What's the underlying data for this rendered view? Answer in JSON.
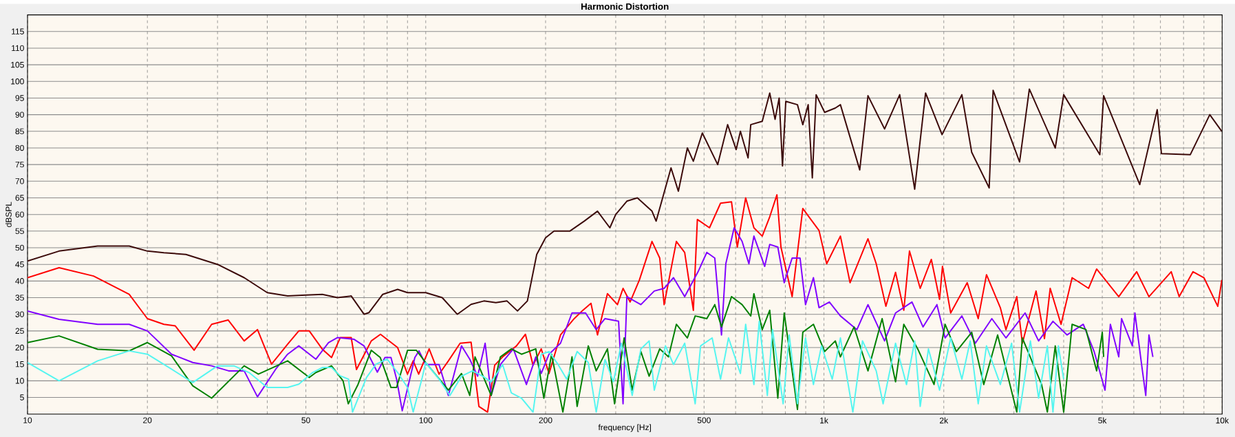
{
  "chart_data": {
    "type": "line",
    "title": "Harmonic Distortion",
    "xlabel": "frequency [Hz]",
    "ylabel": "dBSPL",
    "log": "x",
    "grid": true,
    "line_style": "solid",
    "xlim": [
      10,
      10000
    ],
    "ylim": [
      0,
      120
    ],
    "xticks": [
      10,
      20,
      {
        "value": 30,
        "label": null
      },
      {
        "value": 40,
        "label": null
      },
      50,
      {
        "value": 60,
        "label": null
      },
      {
        "value": 70,
        "label": null
      },
      {
        "value": 80,
        "label": null
      },
      {
        "value": 90,
        "label": null
      },
      100,
      200,
      {
        "value": 300,
        "label": null
      },
      {
        "value": 400,
        "label": null
      },
      500,
      {
        "value": 600,
        "label": null
      },
      {
        "value": 700,
        "label": null
      },
      {
        "value": 800,
        "label": null
      },
      {
        "value": 900,
        "label": null
      },
      {
        "value": 1000,
        "label": "1k"
      },
      {
        "value": 2000,
        "label": "2k"
      },
      {
        "value": 3000,
        "label": null
      },
      {
        "value": 4000,
        "label": null
      },
      {
        "value": 5000,
        "label": "5k"
      },
      {
        "value": 6000,
        "label": null
      },
      {
        "value": 7000,
        "label": null
      },
      {
        "value": 8000,
        "label": null
      },
      {
        "value": 9000,
        "label": null
      },
      {
        "value": 10000,
        "label": "10k"
      }
    ],
    "yticks": [
      5,
      10,
      15,
      20,
      25,
      30,
      35,
      40,
      45,
      50,
      55,
      60,
      65,
      70,
      75,
      80,
      85,
      90,
      95,
      100,
      105,
      110,
      115
    ],
    "series": [
      {
        "color": "#3c0a0a",
        "x": [
          10,
          12,
          15,
          18,
          20,
          22,
          25,
          30,
          35,
          40,
          45,
          50,
          55,
          60,
          65,
          70,
          72,
          78,
          85,
          90,
          100,
          110,
          120,
          130,
          140,
          150,
          160,
          170,
          180,
          190,
          200,
          210,
          230,
          250,
          270,
          290,
          300,
          320,
          340,
          370,
          379,
          413,
          431,
          454,
          470,
          495,
          541,
          573,
          602,
          617,
          645,
          655,
          700,
          731,
          754,
          772,
          787,
          802,
          858,
          885,
          913,
          935,
          956,
          1004,
          1068,
          1100,
          1230,
          1290,
          1420,
          1550,
          1690,
          1800,
          1980,
          2220,
          2350,
          2600,
          2660,
          3100,
          3280,
          3810,
          4000,
          4930,
          5040,
          6210,
          6870,
          7040,
          8320,
          9310,
          9980
        ],
        "values": [
          46,
          49,
          50.5,
          50.5,
          49,
          48.5,
          48,
          45,
          41,
          36.5,
          35.5,
          35.8,
          36,
          35,
          35.5,
          30,
          30.5,
          36,
          37.5,
          36.5,
          36.5,
          35,
          30,
          33,
          34,
          33.5,
          34,
          31,
          34,
          48,
          53,
          55,
          55,
          58,
          61,
          56,
          60,
          64,
          65,
          61,
          58,
          74,
          67,
          80,
          76,
          84.5,
          75,
          87,
          79.5,
          85,
          77,
          87,
          88,
          96.5,
          88.6,
          95,
          74.6,
          94,
          93,
          87,
          93,
          71,
          96,
          90.7,
          92,
          93,
          73.4,
          95.7,
          85.7,
          96,
          67.6,
          96.5,
          84,
          96,
          78.7,
          68,
          97.3,
          75.8,
          97.7,
          80,
          96,
          78,
          95.7,
          69,
          91.5,
          78.3,
          78,
          90,
          85
        ]
      },
      {
        "color": "#ff0000",
        "x": [
          10,
          12,
          14.65,
          18,
          20,
          22,
          23.5,
          26.2,
          29,
          31.9,
          35,
          37.8,
          41,
          45,
          48,
          51,
          55,
          58,
          61,
          65,
          67,
          73,
          77,
          85,
          90,
          93,
          96,
          102,
          108,
          114,
          122,
          130,
          136,
          143,
          149,
          156,
          169,
          178,
          186,
          195,
          204,
          218,
          236,
          248,
          260,
          270,
          286,
          303,
          313,
          326,
          344,
          370,
          387,
          397,
          426,
          447,
          470,
          481,
          516,
          550,
          586,
          606,
          636,
          667,
          700,
          731,
          762,
          780,
          832,
          885,
          927,
          972,
          1016,
          1100,
          1163,
          1290,
          1353,
          1431,
          1513,
          1587,
          1640,
          1745,
          1861,
          1952,
          1985,
          2081,
          2290,
          2440,
          2560,
          2773,
          2865,
          3050,
          3150,
          3410,
          3580,
          3700,
          3940,
          4200,
          4620,
          4840,
          5500,
          6100,
          6550,
          7450,
          7800,
          8450,
          9000,
          9750,
          9980
        ],
        "values": [
          41,
          44,
          41.5,
          36,
          28.7,
          27,
          26.5,
          19.2,
          27,
          28.3,
          22,
          25.4,
          15,
          21,
          25,
          25,
          19.5,
          17,
          23,
          23,
          13.4,
          22,
          24,
          20,
          12,
          16,
          12,
          19.6,
          12,
          16,
          21.3,
          21.6,
          2.3,
          0.6,
          14.7,
          17.2,
          20.5,
          24,
          14.7,
          19.6,
          12.2,
          23.8,
          28.7,
          31.2,
          33.3,
          23.8,
          36.2,
          32.9,
          37.8,
          33.7,
          40.3,
          51.9,
          46.9,
          32.9,
          51.9,
          48.6,
          31.2,
          58.5,
          56,
          63.4,
          63.8,
          50.2,
          65,
          56,
          53.5,
          59.3,
          65.9,
          50.2,
          35.3,
          61.8,
          58.5,
          55.2,
          45.2,
          53.5,
          39.5,
          52.7,
          45.2,
          32.4,
          42.6,
          31.2,
          49,
          37.8,
          46.5,
          34.5,
          44.4,
          30.4,
          39.5,
          28.7,
          41.9,
          32,
          25.4,
          35.3,
          21.3,
          37,
          22.7,
          37.8,
          27,
          41,
          37.8,
          43.6,
          35.3,
          42.8,
          35.3,
          42.8,
          35.3,
          42.8,
          41,
          32.4,
          40.3
        ]
      },
      {
        "color": "#8000ff",
        "x": [
          10,
          12,
          15,
          18,
          20,
          23,
          26,
          29,
          32,
          35,
          37.8,
          42,
          45,
          48,
          53,
          57,
          60,
          66,
          70,
          75.6,
          79,
          81.8,
          84.5,
          87.3,
          93.9,
          96.2,
          100,
          108,
          114,
          123,
          129,
          135,
          141,
          146,
          154,
          166,
          179,
          189,
          195,
          204,
          218,
          233,
          252,
          268,
          282,
          305,
          313,
          320,
          347,
          375,
          397,
          419,
          447,
          483,
          508,
          532,
          553,
          567,
          595,
          623,
          648,
          667,
          710,
          731,
          766,
          795,
          832,
          871,
          899,
          941,
          972,
          1032,
          1100,
          1210,
          1290,
          1420,
          1513,
          1664,
          1774,
          1922,
          2015,
          2220,
          2400,
          2640,
          2865,
          3200,
          3460,
          3760,
          4080,
          4480,
          4770,
          5080,
          5240,
          5500,
          5590,
          5950,
          6040,
          6280,
          6430,
          6550,
          6700
        ],
        "values": [
          31,
          28.5,
          27,
          27,
          25,
          18,
          15.5,
          14.5,
          13,
          13,
          5.2,
          13.5,
          18,
          20.5,
          16.5,
          21.5,
          23,
          22.5,
          20.5,
          12.6,
          17,
          17,
          10.5,
          1,
          17,
          19,
          14.9,
          14.9,
          5.6,
          20.5,
          16.5,
          11.4,
          21.3,
          5.6,
          14.9,
          19.6,
          8.9,
          17.2,
          12.2,
          18,
          21.3,
          30.4,
          30.4,
          25.4,
          28.7,
          27.9,
          3.1,
          35.3,
          32.9,
          37,
          37.8,
          41,
          35.3,
          42.8,
          48.6,
          46.9,
          23.8,
          45.2,
          56,
          51.9,
          45.2,
          53.5,
          44.4,
          51,
          50.2,
          39.5,
          46.9,
          46.9,
          32.9,
          41,
          32,
          33.7,
          29.5,
          25.4,
          32.9,
          22,
          30.4,
          33.7,
          26.2,
          32.9,
          22.9,
          29.5,
          21.3,
          28.7,
          22.9,
          30.4,
          22,
          27.9,
          23.8,
          27,
          18.8,
          7.2,
          27,
          17.2,
          28.7,
          20.5,
          30.4,
          14.7,
          5.6,
          23.8,
          17.2
        ]
      },
      {
        "color": "#008000",
        "x": [
          10,
          12,
          15,
          18,
          20,
          23,
          26,
          29,
          35,
          38,
          45,
          51,
          53,
          58,
          62,
          63.9,
          67.6,
          73,
          76.9,
          81.8,
          84.5,
          90,
          94.7,
          100,
          114,
          123,
          129,
          133,
          146,
          154,
          164,
          174,
          189,
          198,
          207,
          221,
          233,
          240,
          256,
          268,
          286,
          298,
          315,
          330,
          347,
          364,
          387,
          407,
          426,
          454,
          475,
          508,
          532,
          553,
          586,
          623,
          655,
          667,
          700,
          731,
          766,
          795,
          858,
          885,
          941,
          1004,
          1068,
          1100,
          1190,
          1290,
          1400,
          1513,
          1587,
          1720,
          1890,
          2015,
          2150,
          2350,
          2520,
          2730,
          3050,
          3150,
          3520,
          3640,
          3810,
          4000,
          4200,
          4550,
          4840,
          5000,
          5040
        ],
        "values": [
          21.5,
          23.5,
          19.5,
          19,
          21.5,
          17.5,
          8.5,
          4.8,
          14.5,
          12,
          16,
          11,
          12.5,
          14.5,
          10,
          3.1,
          8.9,
          19.2,
          17,
          8,
          8,
          19.2,
          19.2,
          15.5,
          7.2,
          12.2,
          5.6,
          17.2,
          5.6,
          17.2,
          19.6,
          18,
          19.6,
          4.8,
          18,
          0.6,
          17.2,
          2.3,
          20.5,
          13,
          19.6,
          3.1,
          22.9,
          7.2,
          18.8,
          11.4,
          19.6,
          17.2,
          27,
          22.9,
          29.5,
          28.7,
          32.9,
          26.2,
          35.3,
          32.9,
          29.5,
          36.2,
          25.4,
          31.2,
          4.8,
          30.4,
          1.4,
          24.6,
          27,
          18.8,
          22,
          17.2,
          26.2,
          13,
          28.7,
          9.7,
          27,
          19.6,
          8.9,
          27,
          18.8,
          24.6,
          8.9,
          23.8,
          0.6,
          22.9,
          8.9,
          0.6,
          20.5,
          0.6,
          27,
          25.4,
          13,
          24.6,
          17.2
        ]
      },
      {
        "color": "#55f5f0",
        "x": [
          10,
          12,
          15,
          18,
          20,
          23,
          26,
          30,
          33,
          36,
          40,
          45,
          48,
          52,
          55,
          58,
          61,
          64,
          65.5,
          71,
          75,
          80,
          85,
          90,
          93,
          98,
          100,
          108,
          115,
          123,
          131,
          139,
          146,
          156,
          164,
          174,
          186,
          195,
          204,
          215,
          226,
          240,
          256,
          268,
          282,
          296,
          310,
          330,
          347,
          364,
          375,
          400,
          419,
          447,
          475,
          490,
          524,
          550,
          576,
          617,
          636,
          667,
          688,
          721,
          743,
          790,
          818,
          858,
          899,
          941,
          986,
          1049,
          1100,
          1182,
          1250,
          1353,
          1408,
          1513,
          1612,
          1690,
          1745,
          1830,
          1952,
          2081,
          2220,
          2330,
          2440,
          2560,
          2773,
          2960,
          3100,
          3300,
          3460,
          3640,
          3760,
          3880,
          4000
        ],
        "values": [
          15.5,
          10,
          16,
          19,
          18,
          13.5,
          9.5,
          14.5,
          14.5,
          12.5,
          8,
          8,
          9,
          12.5,
          14,
          14,
          11.5,
          10.5,
          0.6,
          11,
          15,
          16.5,
          12.5,
          8,
          0.6,
          11,
          15.5,
          10.5,
          5.6,
          11.4,
          13,
          11.4,
          9.7,
          14.9,
          6.4,
          4.8,
          0.6,
          18,
          18.8,
          14.9,
          10.5,
          18.8,
          15.5,
          0.6,
          16.4,
          9.7,
          21.3,
          5.6,
          19.6,
          22,
          7.2,
          20.5,
          14.9,
          21.3,
          3.1,
          20.5,
          22.9,
          10.5,
          22.9,
          12.2,
          27,
          8.9,
          27.9,
          5.6,
          25.4,
          3.1,
          23.8,
          3.1,
          22.9,
          8.9,
          20.5,
          10.5,
          22.9,
          0.6,
          22,
          13,
          3.1,
          21.3,
          8.9,
          22,
          2.3,
          19.6,
          7.2,
          22.9,
          10.5,
          22,
          3.1,
          20.5,
          8.9,
          21.3,
          0.6,
          22,
          4.8,
          20.5,
          0.6,
          20.5,
          10.5
        ]
      }
    ]
  }
}
